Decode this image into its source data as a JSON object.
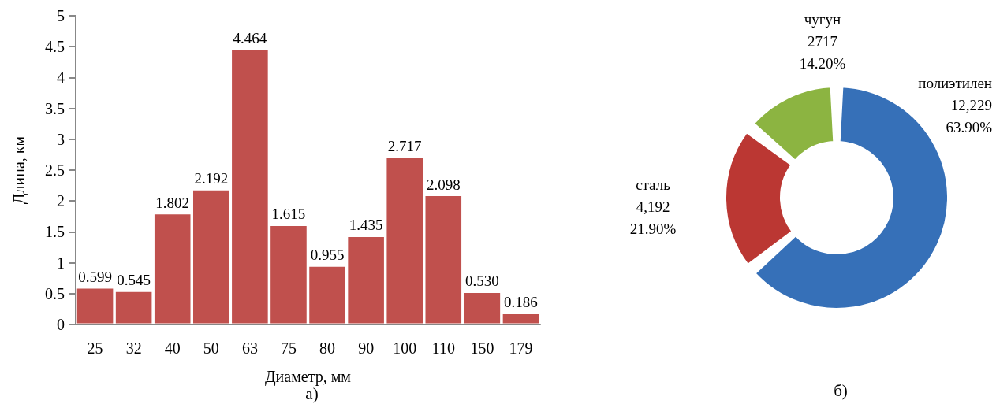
{
  "chart_data": [
    {
      "type": "bar",
      "title": "а)",
      "xlabel": "Диаметр, мм",
      "ylabel": "Длина, км",
      "categories": [
        "25",
        "32",
        "40",
        "50",
        "63",
        "75",
        "80",
        "90",
        "100",
        "110",
        "150",
        "179"
      ],
      "values": [
        0.599,
        0.545,
        1.802,
        2.192,
        4.464,
        1.615,
        0.955,
        1.435,
        2.717,
        2.098,
        0.53,
        0.186
      ],
      "value_labels": [
        "0.599",
        "0.545",
        "1.802",
        "2.192",
        "4.464",
        "1.615",
        "0.955",
        "1.435",
        "2.717",
        "2.098",
        "0.530",
        "0.186"
      ],
      "color": "#c0504d",
      "ylim": [
        0,
        5
      ],
      "yticks": [
        0,
        0.5,
        1,
        1.5,
        2,
        2.5,
        3,
        3.5,
        4,
        4.5,
        5
      ]
    },
    {
      "type": "donut",
      "title": "б)",
      "categories": [
        "полиэтилен",
        "сталь",
        "чугун"
      ],
      "values": [
        12229,
        4192,
        2717
      ],
      "value_labels": [
        "12,229 63.90%",
        "4,192 21.90%",
        "2717 14.20%"
      ],
      "colors": [
        "#3670b8",
        "#bb3733",
        "#8cb441"
      ]
    }
  ]
}
